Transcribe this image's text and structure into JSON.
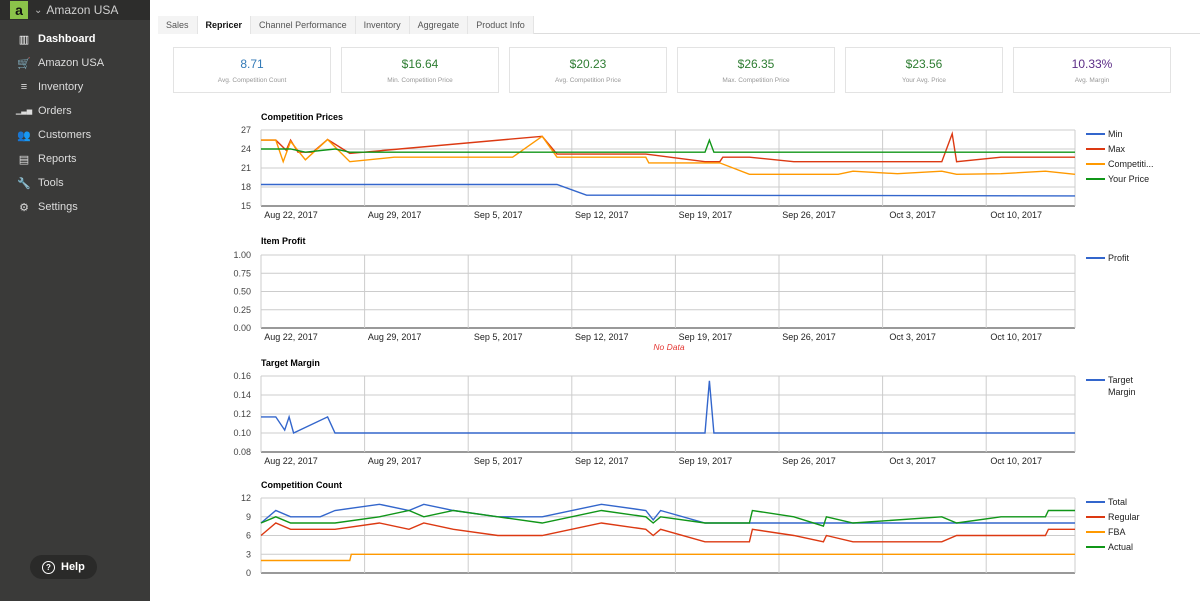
{
  "sidebar": {
    "brand": "Amazon USA",
    "items": [
      {
        "label": "Dashboard",
        "icon": "dashboard-icon",
        "active": true
      },
      {
        "label": "Amazon USA",
        "icon": "cart-icon"
      },
      {
        "label": "Inventory",
        "icon": "list-icon"
      },
      {
        "label": "Orders",
        "icon": "bars-icon"
      },
      {
        "label": "Customers",
        "icon": "users-icon"
      },
      {
        "label": "Reports",
        "icon": "report-icon"
      },
      {
        "label": "Tools",
        "icon": "wrench-icon"
      },
      {
        "label": "Settings",
        "icon": "gear-icon"
      }
    ],
    "help": "Help"
  },
  "tabs": [
    "Sales",
    "Repricer",
    "Channel Performance",
    "Inventory",
    "Aggregate",
    "Product Info"
  ],
  "active_tab": "Repricer",
  "kpis": [
    {
      "value": "8.71",
      "label": "Avg. Competition Count"
    },
    {
      "value": "$16.64",
      "label": "Min. Competition Price"
    },
    {
      "value": "$20.23",
      "label": "Avg. Competition Price"
    },
    {
      "value": "$26.35",
      "label": "Max. Competition Price"
    },
    {
      "value": "$23.56",
      "label": "Your Avg. Price"
    },
    {
      "value": "10.33%",
      "label": "Avg. Margin"
    }
  ],
  "chart_data": [
    {
      "type": "line",
      "title": "Competition Prices",
      "ylim": [
        15,
        27
      ],
      "yticks": [
        "27",
        "24",
        "21",
        "18",
        "15"
      ],
      "xlim": [
        0,
        55
      ],
      "xticks": [
        "Aug 22, 2017",
        "Aug 29, 2017",
        "Sep 5, 2017",
        "Sep 12, 2017",
        "Sep 19, 2017",
        "Sep 26, 2017",
        "Oct 3, 2017",
        "Oct 10, 2017"
      ],
      "legend_position": "right",
      "series": [
        {
          "name": "Min",
          "color": "#3366cc",
          "x": [
            0,
            20,
            22,
            26,
            55
          ],
          "y": [
            18.4,
            18.4,
            16.7,
            16.7,
            16.6
          ]
        },
        {
          "name": "Max",
          "color": "#dc3912",
          "x": [
            0,
            1,
            1.7,
            2,
            2.5,
            3.5,
            4.5,
            6,
            19,
            20,
            26,
            30,
            31,
            31.2,
            33,
            36,
            39,
            46,
            46.7,
            47,
            50,
            55
          ],
          "y": [
            25.4,
            25.4,
            23.8,
            25.4,
            23.5,
            23.5,
            25.5,
            23.3,
            26,
            23.2,
            23.2,
            22,
            22,
            22.7,
            22.7,
            22,
            22,
            22,
            26.4,
            22,
            22.7,
            22.7
          ]
        },
        {
          "name": "Competiti...",
          "color": "#ff9900",
          "x": [
            0,
            1,
            1.5,
            2,
            3,
            4.5,
            6,
            9,
            17,
            19,
            20,
            26,
            26.2,
            29,
            31,
            33,
            36,
            39,
            40,
            43,
            46,
            47,
            50,
            53,
            55
          ],
          "y": [
            25.4,
            25.4,
            22,
            25.2,
            22.3,
            25.5,
            22,
            22.7,
            22.7,
            26,
            22.7,
            22.7,
            21.8,
            21.8,
            21.8,
            20,
            20,
            20,
            20.5,
            20.1,
            20.5,
            20,
            20.1,
            20.5,
            20
          ]
        },
        {
          "name": "Your Price",
          "color": "#109618",
          "x": [
            0,
            2,
            3,
            5,
            6,
            30,
            30.3,
            30.6,
            55
          ],
          "y": [
            24,
            24,
            23.5,
            24,
            23.5,
            23.5,
            25.4,
            23.5,
            23.5
          ]
        }
      ]
    },
    {
      "type": "line",
      "title": "Item Profit",
      "ylim": [
        0,
        1
      ],
      "yticks": [
        "1.00",
        "0.75",
        "0.50",
        "0.25",
        "0.00"
      ],
      "xlim": [
        0,
        55
      ],
      "xticks": [
        "Aug 22, 2017",
        "Aug 29, 2017",
        "Sep 5, 2017",
        "Sep 12, 2017",
        "Sep 19, 2017",
        "Sep 26, 2017",
        "Oct 3, 2017",
        "Oct 10, 2017"
      ],
      "legend_position": "right",
      "no_data": "No Data",
      "series": [
        {
          "name": "Profit",
          "color": "#3366cc",
          "x": [],
          "y": []
        }
      ]
    },
    {
      "type": "line",
      "title": "Target Margin",
      "ylim": [
        0.08,
        0.16
      ],
      "yticks": [
        "0.16",
        "0.14",
        "0.12",
        "0.10",
        "0.08"
      ],
      "xlim": [
        0,
        55
      ],
      "xticks": [
        "Aug 22, 2017",
        "Aug 29, 2017",
        "Sep 5, 2017",
        "Sep 12, 2017",
        "Sep 19, 2017",
        "Sep 26, 2017",
        "Oct 3, 2017",
        "Oct 10, 2017"
      ],
      "legend_position": "right",
      "series": [
        {
          "name": "Target Margin",
          "color": "#3366cc",
          "x": [
            0,
            1,
            1.6,
            1.9,
            2.2,
            4.5,
            5,
            30,
            30.3,
            30.6,
            55
          ],
          "y": [
            0.117,
            0.117,
            0.103,
            0.117,
            0.1,
            0.117,
            0.1,
            0.1,
            0.155,
            0.1,
            0.1
          ]
        }
      ]
    },
    {
      "type": "line",
      "title": "Competition Count",
      "ylim": [
        0,
        12
      ],
      "yticks": [
        "12",
        "9",
        "6",
        "3",
        "0"
      ],
      "xlim": [
        0,
        55
      ],
      "xticks": [],
      "legend_position": "right",
      "series": [
        {
          "name": "Total",
          "color": "#3366cc",
          "x": [
            0,
            1,
            2,
            4,
            5,
            8,
            10,
            11,
            13,
            16,
            19,
            23,
            26,
            26.5,
            27,
            30,
            55
          ],
          "y": [
            8,
            10,
            9,
            9,
            10,
            11,
            10,
            11,
            10,
            9,
            9,
            11,
            10,
            8.5,
            10,
            8,
            8
          ]
        },
        {
          "name": "Regular",
          "color": "#dc3912",
          "x": [
            0,
            1,
            2,
            5,
            8,
            10,
            11,
            13,
            16,
            19,
            23,
            26,
            26.5,
            27,
            30,
            33,
            33.2,
            36,
            38,
            38.2,
            40,
            46,
            47,
            50,
            53,
            53.2,
            55
          ],
          "y": [
            6,
            8,
            7,
            7,
            8,
            7,
            8,
            7,
            6,
            6,
            8,
            7,
            6,
            7,
            5,
            5,
            7,
            6,
            5,
            6,
            5,
            5,
            6,
            6,
            6,
            7,
            7
          ]
        },
        {
          "name": "FBA",
          "color": "#ff9900",
          "x": [
            0,
            6,
            6.1,
            55
          ],
          "y": [
            2,
            2,
            3,
            3
          ]
        },
        {
          "name": "Actual",
          "color": "#109618",
          "x": [
            0,
            1,
            2,
            5,
            8,
            10,
            11,
            13,
            16,
            19,
            23,
            26,
            26.5,
            27,
            30,
            33,
            33.2,
            36,
            38,
            38.2,
            40,
            46,
            47,
            50,
            53,
            53.2,
            55
          ],
          "y": [
            8,
            9,
            8,
            8,
            9,
            10,
            9,
            10,
            9,
            8,
            10,
            9,
            8,
            9,
            8,
            8,
            10,
            9,
            7.5,
            9,
            8,
            9,
            8,
            9,
            9,
            10,
            10
          ]
        }
      ]
    }
  ]
}
